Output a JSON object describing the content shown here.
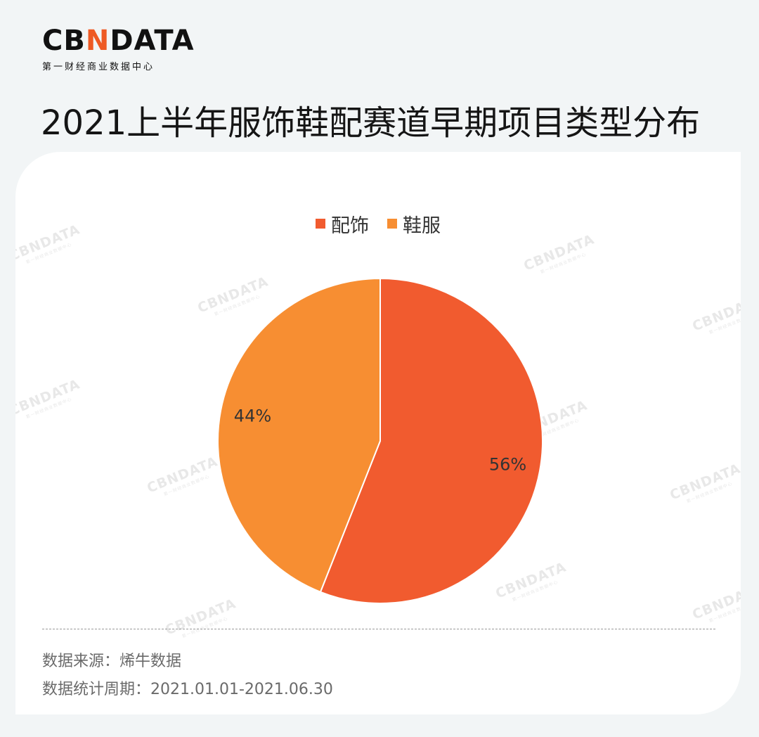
{
  "brand": {
    "logo_text_a": "CB",
    "logo_text_n": "N",
    "logo_text_b": "DATA",
    "subtitle": "第一财经商业数据中心",
    "accent_color": "#ee5a24"
  },
  "chart_data": {
    "type": "pie",
    "title": "2021上半年服饰鞋配赛道早期项目类型分布",
    "legend_position": "top",
    "slices": [
      {
        "name": "配饰",
        "value": 56,
        "label": "56%",
        "color": "#f15b2f"
      },
      {
        "name": "鞋服",
        "value": 44,
        "label": "44%",
        "color": "#f78e32"
      }
    ],
    "start_angle_deg": 0,
    "direction": "clockwise"
  },
  "footer": {
    "source": "数据来源：烯牛数据",
    "period": "数据统计周期：2021.01.01-2021.06.30"
  }
}
